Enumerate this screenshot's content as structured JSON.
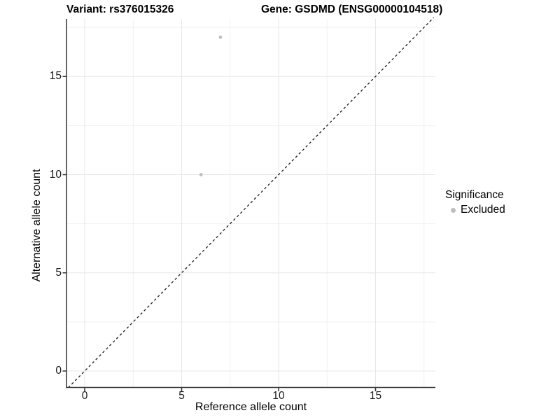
{
  "header": {
    "title_left": "Variant: rs376015326",
    "title_right": "Gene: GSDMD (ENSG00000104518)"
  },
  "chart_data": {
    "type": "scatter",
    "xlabel": "Reference allele count",
    "ylabel": "Alternative allele count",
    "xlim": [
      -0.9,
      18.3
    ],
    "ylim": [
      -0.85,
      18.0
    ],
    "xticks": [
      0,
      5,
      10,
      15
    ],
    "yticks": [
      0,
      5,
      10,
      15
    ],
    "minor_xticks": [
      2.5,
      7.5,
      12.5,
      17.5
    ],
    "minor_yticks": [
      2.5,
      7.5,
      12.5,
      17.5
    ],
    "grid": true,
    "series": [
      {
        "name": "Excluded",
        "color": "#bdbdbd",
        "points": [
          {
            "x": 7,
            "y": 17
          },
          {
            "x": 6,
            "y": 10
          }
        ]
      }
    ],
    "reference_line": {
      "type": "identity",
      "slope": 1,
      "intercept": 0,
      "style": "dashed",
      "color": "#1a1a1a"
    },
    "legend": {
      "title": "Significance",
      "position": "right",
      "items": [
        {
          "label": "Excluded",
          "color": "#bdbdbd"
        }
      ]
    },
    "colors": {
      "grid_major": "#e7e7e7",
      "grid_minor": "#f1f1f1",
      "axis_line": "#333333",
      "tick_text": "#1a1a1a"
    }
  }
}
